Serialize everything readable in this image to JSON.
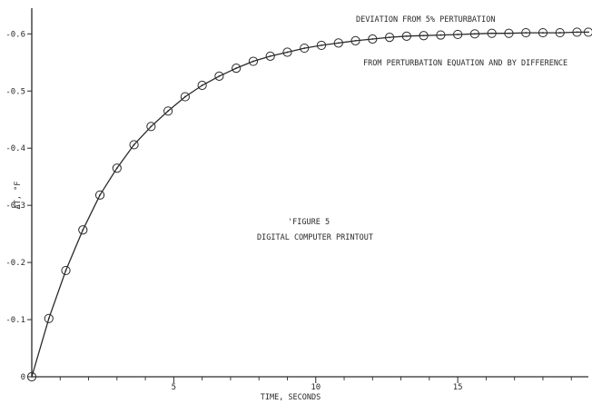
{
  "chart_data": {
    "type": "line",
    "title": "",
    "xlabel": "TIME, SECONDS",
    "ylabel": "ΔT, °F",
    "xlim": [
      0,
      19.6
    ],
    "ylim": [
      0,
      -0.645
    ],
    "x_ticks": [
      5,
      10,
      15
    ],
    "x_tick_labels": [
      "5",
      "10",
      "15"
    ],
    "y_ticks": [
      0,
      -0.1,
      -0.2,
      -0.3,
      -0.4,
      -0.5,
      -0.6
    ],
    "y_tick_labels": [
      "0",
      "-0.1",
      "-0.2",
      "-0.3",
      "-0.4",
      "-0.5",
      "-0.6"
    ],
    "grid": false,
    "annotations": {
      "curve_note_top": "DEVIATION FROM 5% PERTURBATION",
      "curve_note_bottom": "FROM PERTURBATION EQUATION AND BY DIFFERENCE",
      "figure_label": "'FIGURE 5",
      "figure_caption": "DIGITAL COMPUTER PRINTOUT"
    },
    "series": [
      {
        "style": "solid-line",
        "x": [
          0,
          0.6,
          1.2,
          1.8,
          2.4,
          3.0,
          3.6,
          4.2,
          4.8,
          5.4,
          6.0,
          6.6,
          7.2,
          7.8,
          8.4,
          9.0,
          9.6,
          10.2,
          10.8,
          11.4,
          12.0,
          12.6,
          13.2,
          13.8,
          14.4,
          15.0,
          15.6,
          16.2,
          16.8,
          17.4,
          18.0,
          18.6,
          19.2,
          19.6
        ],
        "y": [
          0,
          -0.102,
          -0.186,
          -0.257,
          -0.318,
          -0.365,
          -0.406,
          -0.438,
          -0.465,
          -0.49,
          -0.51,
          -0.526,
          -0.54,
          -0.552,
          -0.561,
          -0.568,
          -0.575,
          -0.58,
          -0.584,
          -0.588,
          -0.591,
          -0.594,
          -0.596,
          -0.597,
          -0.598,
          -0.599,
          -0.6,
          -0.601,
          -0.601,
          -0.602,
          -0.602,
          -0.602,
          -0.603,
          -0.603
        ]
      },
      {
        "style": "circle-markers",
        "x": [
          0,
          0.6,
          1.2,
          1.8,
          2.4,
          3.0,
          3.6,
          4.2,
          4.8,
          5.4,
          6.0,
          6.6,
          7.2,
          7.8,
          8.4,
          9.0,
          9.6,
          10.2,
          10.8,
          11.4,
          12.0,
          12.6,
          13.2,
          13.8,
          14.4,
          15.0,
          15.6,
          16.2,
          16.8,
          17.4,
          18.0,
          18.6,
          19.2,
          19.6
        ],
        "y": [
          0,
          -0.102,
          -0.186,
          -0.257,
          -0.318,
          -0.365,
          -0.406,
          -0.438,
          -0.465,
          -0.49,
          -0.51,
          -0.526,
          -0.54,
          -0.552,
          -0.561,
          -0.568,
          -0.575,
          -0.58,
          -0.584,
          -0.588,
          -0.591,
          -0.594,
          -0.596,
          -0.597,
          -0.598,
          -0.599,
          -0.6,
          -0.601,
          -0.601,
          -0.602,
          -0.602,
          -0.602,
          -0.603,
          -0.603
        ]
      }
    ]
  },
  "colors": {
    "ink": "#2a2a2a",
    "paper": "#ffffff"
  }
}
